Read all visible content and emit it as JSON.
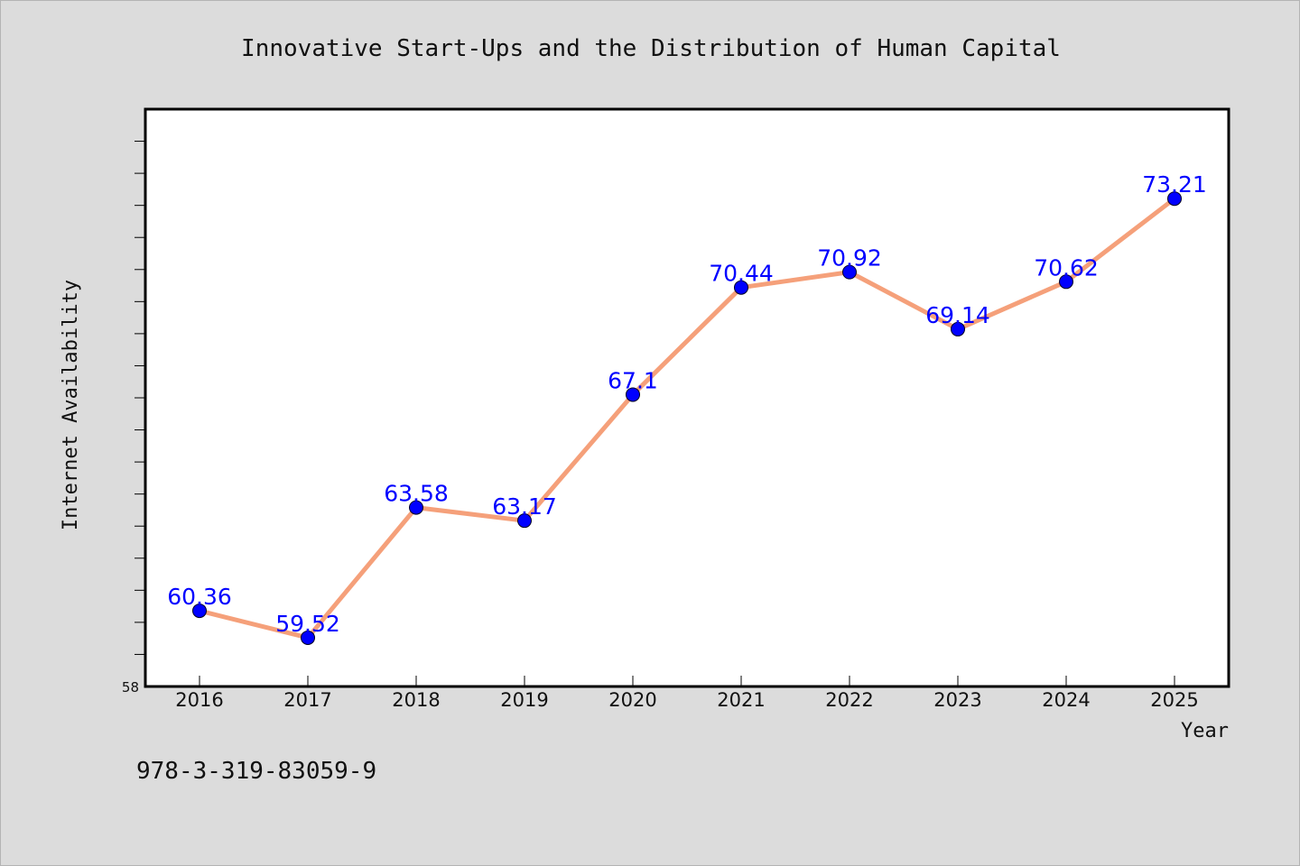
{
  "chart_data": {
    "type": "line",
    "title": "Innovative Start-Ups and the Distribution of Human Capital",
    "xlabel": "Year",
    "ylabel": "Internet Availability",
    "categories": [
      "2016",
      "2017",
      "2018",
      "2019",
      "2020",
      "2021",
      "2022",
      "2023",
      "2024",
      "2025"
    ],
    "series": [
      {
        "values": [
          60.36,
          59.52,
          63.58,
          63.17,
          67.1,
          70.44,
          70.92,
          69.14,
          70.62,
          73.21
        ],
        "data_labels": [
          "60.36",
          "59.52",
          "63.58",
          "63.17",
          "67.1",
          "70.44",
          "70.92",
          "69.14",
          "70.62",
          "73.21"
        ],
        "line_color": "#f5a07a",
        "marker_color": "#0000ff"
      }
    ],
    "ylim": [
      58,
      76
    ],
    "y_tick_labels": [
      "58"
    ],
    "grid": false,
    "legend": "none"
  },
  "footnote": "978-3-319-83059-9"
}
